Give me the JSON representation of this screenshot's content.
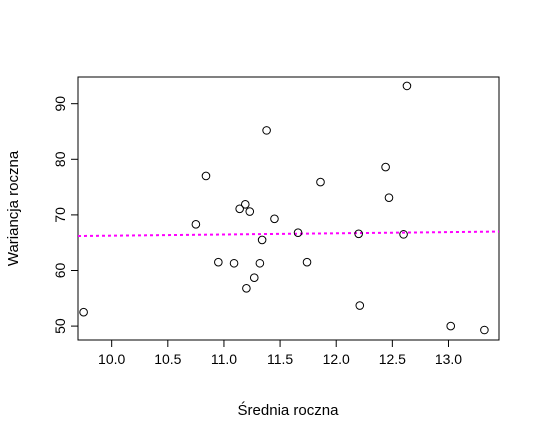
{
  "chart_data": {
    "type": "scatter",
    "title": "",
    "xlabel": "Średnia roczna",
    "ylabel": "Wariancja roczna",
    "xlim": [
      9.7,
      13.45
    ],
    "ylim": [
      47.5,
      94.8
    ],
    "x_ticks": [
      10.0,
      10.5,
      11.0,
      11.5,
      12.0,
      12.5,
      13.0
    ],
    "x_tick_labels": [
      "10.0",
      "10.5",
      "11.0",
      "11.5",
      "12.0",
      "12.5",
      "13.0"
    ],
    "y_ticks": [
      50,
      60,
      70,
      80,
      90
    ],
    "y_tick_labels": [
      "50",
      "60",
      "70",
      "80",
      "90"
    ],
    "grid": false,
    "legend": "none",
    "points": [
      {
        "x": 9.75,
        "y": 52.5
      },
      {
        "x": 10.75,
        "y": 68.3
      },
      {
        "x": 10.84,
        "y": 77.0
      },
      {
        "x": 10.95,
        "y": 61.5
      },
      {
        "x": 11.09,
        "y": 61.3
      },
      {
        "x": 11.14,
        "y": 71.1
      },
      {
        "x": 11.19,
        "y": 71.9
      },
      {
        "x": 11.2,
        "y": 56.8
      },
      {
        "x": 11.23,
        "y": 70.6
      },
      {
        "x": 11.27,
        "y": 58.7
      },
      {
        "x": 11.32,
        "y": 61.3
      },
      {
        "x": 11.34,
        "y": 65.5
      },
      {
        "x": 11.38,
        "y": 85.2
      },
      {
        "x": 11.45,
        "y": 69.3
      },
      {
        "x": 11.66,
        "y": 66.8
      },
      {
        "x": 11.74,
        "y": 61.5
      },
      {
        "x": 11.86,
        "y": 75.9
      },
      {
        "x": 12.2,
        "y": 66.6
      },
      {
        "x": 12.21,
        "y": 53.7
      },
      {
        "x": 12.44,
        "y": 78.6
      },
      {
        "x": 12.47,
        "y": 73.1
      },
      {
        "x": 12.6,
        "y": 66.5
      },
      {
        "x": 12.63,
        "y": 93.2
      },
      {
        "x": 13.02,
        "y": 50.0
      },
      {
        "x": 13.32,
        "y": 49.3
      }
    ],
    "trend_line": {
      "style": "dashed",
      "color": "#ff00ff",
      "from": {
        "x": 9.7,
        "y": 66.2
      },
      "to": {
        "x": 13.45,
        "y": 67.0
      }
    }
  }
}
